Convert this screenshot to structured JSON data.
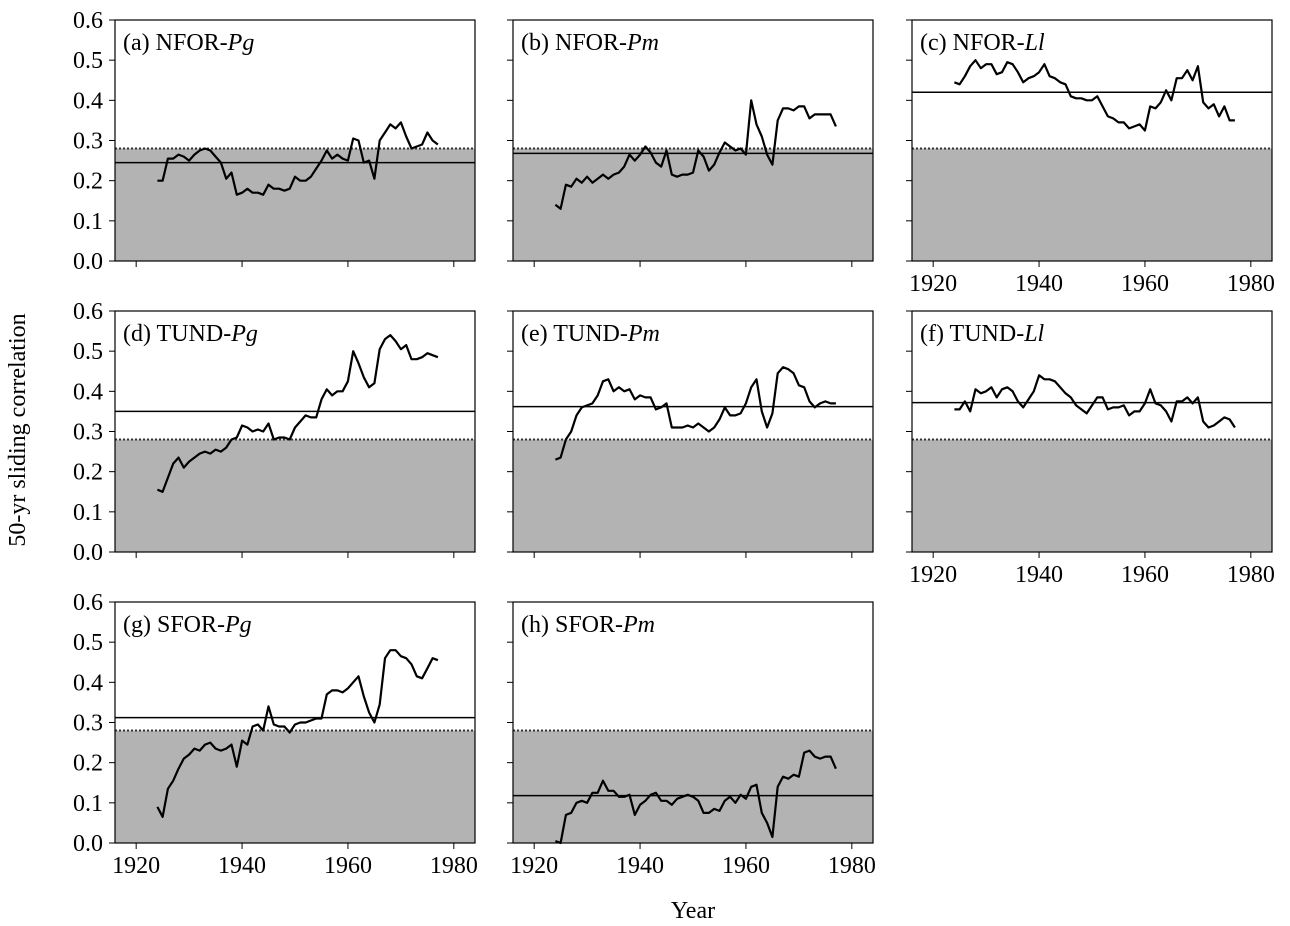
{
  "y_label": "50-yr sliding correlation",
  "x_label": "Year",
  "chart_data": [
    {
      "type": "line",
      "title": "(a) NFOR-Pg",
      "mean": 0.245,
      "threshold": 0.28,
      "xlim": [
        1916,
        1984
      ],
      "ylim": [
        0,
        0.6
      ],
      "xticks": [
        1920,
        1940,
        1960,
        1980
      ],
      "yticks": [
        {
          "value": 0,
          "label": "0.0"
        },
        0.1,
        0.2,
        0.3,
        0.4,
        0.5,
        0.6
      ],
      "xtick_labels": false,
      "ytick_labels": true,
      "x": [
        1924,
        1925,
        1926,
        1927,
        1928,
        1929,
        1930,
        1931,
        1932,
        1933,
        1934,
        1935,
        1936,
        1937,
        1938,
        1939,
        1940,
        1941,
        1942,
        1943,
        1944,
        1945,
        1946,
        1947,
        1948,
        1949,
        1950,
        1951,
        1952,
        1953,
        1954,
        1955,
        1956,
        1957,
        1958,
        1959,
        1960,
        1961,
        1962,
        1963,
        1964,
        1965,
        1966,
        1967,
        1968,
        1969,
        1970,
        1971,
        1972,
        1973,
        1974,
        1975,
        1976,
        1977
      ],
      "values": [
        0.2,
        0.2,
        0.255,
        0.255,
        0.265,
        0.26,
        0.25,
        0.265,
        0.275,
        0.28,
        0.275,
        0.26,
        0.245,
        0.205,
        0.22,
        0.165,
        0.17,
        0.18,
        0.17,
        0.17,
        0.165,
        0.19,
        0.18,
        0.18,
        0.175,
        0.18,
        0.21,
        0.2,
        0.2,
        0.21,
        0.23,
        0.25,
        0.275,
        0.255,
        0.265,
        0.255,
        0.25,
        0.305,
        0.3,
        0.245,
        0.25,
        0.205,
        0.3,
        0.32,
        0.34,
        0.33,
        0.345,
        0.31,
        0.28,
        0.285,
        0.29,
        0.32,
        0.3,
        0.29
      ]
    },
    {
      "type": "line",
      "title": "(b) NFOR-Pm",
      "mean": 0.268,
      "threshold": 0.28,
      "xlim": [
        1916,
        1984
      ],
      "ylim": [
        0,
        0.6
      ],
      "xticks": [
        1920,
        1940,
        1960,
        1980
      ],
      "yticks": [
        {
          "value": 0,
          "label": "0.0"
        },
        0.1,
        0.2,
        0.3,
        0.4,
        0.5,
        0.6
      ],
      "xtick_labels": false,
      "ytick_labels": false,
      "x": [
        1924,
        1925,
        1926,
        1927,
        1928,
        1929,
        1930,
        1931,
        1932,
        1933,
        1934,
        1935,
        1936,
        1937,
        1938,
        1939,
        1940,
        1941,
        1942,
        1943,
        1944,
        1945,
        1946,
        1947,
        1948,
        1949,
        1950,
        1951,
        1952,
        1953,
        1954,
        1955,
        1956,
        1957,
        1958,
        1959,
        1960,
        1961,
        1962,
        1963,
        1964,
        1965,
        1966,
        1967,
        1968,
        1969,
        1970,
        1971,
        1972,
        1973,
        1974,
        1975,
        1976,
        1977
      ],
      "values": [
        0.14,
        0.13,
        0.19,
        0.185,
        0.205,
        0.195,
        0.21,
        0.195,
        0.205,
        0.215,
        0.205,
        0.215,
        0.22,
        0.235,
        0.265,
        0.25,
        0.265,
        0.285,
        0.27,
        0.245,
        0.235,
        0.275,
        0.215,
        0.21,
        0.215,
        0.215,
        0.22,
        0.275,
        0.26,
        0.225,
        0.24,
        0.27,
        0.295,
        0.285,
        0.275,
        0.28,
        0.265,
        0.4,
        0.34,
        0.31,
        0.265,
        0.24,
        0.35,
        0.38,
        0.38,
        0.375,
        0.385,
        0.385,
        0.355,
        0.365,
        0.365,
        0.365,
        0.365,
        0.335
      ]
    },
    {
      "type": "line",
      "title": "(c) NFOR-Ll",
      "mean": 0.42,
      "threshold": 0.28,
      "xlim": [
        1916,
        1984
      ],
      "ylim": [
        0,
        0.6
      ],
      "xticks": [
        1920,
        1940,
        1960,
        1980
      ],
      "yticks": [
        {
          "value": 0,
          "label": "0.0"
        },
        0.1,
        0.2,
        0.3,
        0.4,
        0.5,
        0.6
      ],
      "xtick_labels": true,
      "ytick_labels": false,
      "x": [
        1924,
        1925,
        1926,
        1927,
        1928,
        1929,
        1930,
        1931,
        1932,
        1933,
        1934,
        1935,
        1936,
        1937,
        1938,
        1939,
        1940,
        1941,
        1942,
        1943,
        1944,
        1945,
        1946,
        1947,
        1948,
        1949,
        1950,
        1951,
        1952,
        1953,
        1954,
        1955,
        1956,
        1957,
        1958,
        1959,
        1960,
        1961,
        1962,
        1963,
        1964,
        1965,
        1966,
        1967,
        1968,
        1969,
        1970,
        1971,
        1972,
        1973,
        1974,
        1975,
        1976,
        1977
      ],
      "values": [
        0.445,
        0.44,
        0.46,
        0.485,
        0.5,
        0.48,
        0.49,
        0.49,
        0.465,
        0.47,
        0.495,
        0.49,
        0.47,
        0.445,
        0.455,
        0.46,
        0.47,
        0.49,
        0.46,
        0.455,
        0.445,
        0.44,
        0.41,
        0.405,
        0.405,
        0.4,
        0.4,
        0.41,
        0.385,
        0.36,
        0.355,
        0.345,
        0.345,
        0.33,
        0.335,
        0.34,
        0.325,
        0.385,
        0.38,
        0.395,
        0.425,
        0.4,
        0.455,
        0.455,
        0.475,
        0.45,
        0.485,
        0.395,
        0.38,
        0.39,
        0.36,
        0.385,
        0.35,
        0.35
      ]
    },
    {
      "type": "line",
      "title": "(d) TUND-Pg",
      "mean": 0.35,
      "threshold": 0.28,
      "xlim": [
        1916,
        1984
      ],
      "ylim": [
        0,
        0.6
      ],
      "xticks": [
        1920,
        1940,
        1960,
        1980
      ],
      "yticks": [
        {
          "value": 0,
          "label": "0.0"
        },
        0.1,
        0.2,
        0.3,
        0.4,
        0.5,
        0.6
      ],
      "xtick_labels": false,
      "ytick_labels": true,
      "x": [
        1924,
        1925,
        1926,
        1927,
        1928,
        1929,
        1930,
        1931,
        1932,
        1933,
        1934,
        1935,
        1936,
        1937,
        1938,
        1939,
        1940,
        1941,
        1942,
        1943,
        1944,
        1945,
        1946,
        1947,
        1948,
        1949,
        1950,
        1951,
        1952,
        1953,
        1954,
        1955,
        1956,
        1957,
        1958,
        1959,
        1960,
        1961,
        1962,
        1963,
        1964,
        1965,
        1966,
        1967,
        1968,
        1969,
        1970,
        1971,
        1972,
        1973,
        1974,
        1975,
        1976,
        1977
      ],
      "values": [
        0.155,
        0.15,
        0.185,
        0.22,
        0.235,
        0.21,
        0.225,
        0.235,
        0.245,
        0.25,
        0.245,
        0.255,
        0.25,
        0.26,
        0.28,
        0.285,
        0.315,
        0.31,
        0.3,
        0.305,
        0.3,
        0.32,
        0.28,
        0.285,
        0.285,
        0.28,
        0.31,
        0.325,
        0.34,
        0.335,
        0.335,
        0.38,
        0.405,
        0.39,
        0.4,
        0.4,
        0.425,
        0.5,
        0.47,
        0.435,
        0.41,
        0.42,
        0.505,
        0.53,
        0.54,
        0.525,
        0.505,
        0.515,
        0.48,
        0.48,
        0.485,
        0.495,
        0.49,
        0.485
      ]
    },
    {
      "type": "line",
      "title": "(e) TUND-Pm",
      "mean": 0.362,
      "threshold": 0.28,
      "xlim": [
        1916,
        1984
      ],
      "ylim": [
        0,
        0.6
      ],
      "xticks": [
        1920,
        1940,
        1960,
        1980
      ],
      "yticks": [
        {
          "value": 0,
          "label": "0.0"
        },
        0.1,
        0.2,
        0.3,
        0.4,
        0.5,
        0.6
      ],
      "xtick_labels": false,
      "ytick_labels": false,
      "x": [
        1924,
        1925,
        1926,
        1927,
        1928,
        1929,
        1930,
        1931,
        1932,
        1933,
        1934,
        1935,
        1936,
        1937,
        1938,
        1939,
        1940,
        1941,
        1942,
        1943,
        1944,
        1945,
        1946,
        1947,
        1948,
        1949,
        1950,
        1951,
        1952,
        1953,
        1954,
        1955,
        1956,
        1957,
        1958,
        1959,
        1960,
        1961,
        1962,
        1963,
        1964,
        1965,
        1966,
        1967,
        1968,
        1969,
        1970,
        1971,
        1972,
        1973,
        1974,
        1975,
        1976,
        1977
      ],
      "values": [
        0.23,
        0.235,
        0.28,
        0.3,
        0.34,
        0.36,
        0.365,
        0.37,
        0.39,
        0.425,
        0.43,
        0.4,
        0.41,
        0.4,
        0.405,
        0.38,
        0.39,
        0.385,
        0.385,
        0.355,
        0.36,
        0.37,
        0.31,
        0.31,
        0.31,
        0.315,
        0.31,
        0.32,
        0.31,
        0.3,
        0.31,
        0.33,
        0.36,
        0.34,
        0.34,
        0.345,
        0.37,
        0.41,
        0.43,
        0.35,
        0.31,
        0.345,
        0.445,
        0.46,
        0.455,
        0.445,
        0.415,
        0.41,
        0.375,
        0.36,
        0.37,
        0.375,
        0.37,
        0.37
      ]
    },
    {
      "type": "line",
      "title": "(f) TUND-Ll",
      "mean": 0.372,
      "threshold": 0.28,
      "xlim": [
        1916,
        1984
      ],
      "ylim": [
        0,
        0.6
      ],
      "xticks": [
        1920,
        1940,
        1960,
        1980
      ],
      "yticks": [
        {
          "value": 0,
          "label": "0.0"
        },
        0.1,
        0.2,
        0.3,
        0.4,
        0.5,
        0.6
      ],
      "xtick_labels": true,
      "ytick_labels": false,
      "x": [
        1924,
        1925,
        1926,
        1927,
        1928,
        1929,
        1930,
        1931,
        1932,
        1933,
        1934,
        1935,
        1936,
        1937,
        1938,
        1939,
        1940,
        1941,
        1942,
        1943,
        1944,
        1945,
        1946,
        1947,
        1948,
        1949,
        1950,
        1951,
        1952,
        1953,
        1954,
        1955,
        1956,
        1957,
        1958,
        1959,
        1960,
        1961,
        1962,
        1963,
        1964,
        1965,
        1966,
        1967,
        1968,
        1969,
        1970,
        1971,
        1972,
        1973,
        1974,
        1975,
        1976,
        1977
      ],
      "values": [
        0.355,
        0.355,
        0.375,
        0.35,
        0.405,
        0.395,
        0.4,
        0.41,
        0.385,
        0.405,
        0.41,
        0.4,
        0.375,
        0.36,
        0.38,
        0.4,
        0.44,
        0.43,
        0.43,
        0.425,
        0.41,
        0.395,
        0.385,
        0.365,
        0.355,
        0.345,
        0.365,
        0.385,
        0.385,
        0.355,
        0.36,
        0.36,
        0.365,
        0.34,
        0.35,
        0.35,
        0.37,
        0.405,
        0.37,
        0.365,
        0.35,
        0.325,
        0.375,
        0.375,
        0.385,
        0.37,
        0.385,
        0.325,
        0.31,
        0.315,
        0.325,
        0.335,
        0.33,
        0.31
      ]
    },
    {
      "type": "line",
      "title": "(g) SFOR-Pg",
      "mean": 0.312,
      "threshold": 0.28,
      "xlim": [
        1916,
        1984
      ],
      "ylim": [
        0,
        0.6
      ],
      "xticks": [
        1920,
        1940,
        1960,
        1980
      ],
      "yticks": [
        {
          "value": 0,
          "label": "0.0"
        },
        0.1,
        0.2,
        0.3,
        0.4,
        0.5,
        0.6
      ],
      "xtick_labels": true,
      "ytick_labels": true,
      "x": [
        1924,
        1925,
        1926,
        1927,
        1928,
        1929,
        1930,
        1931,
        1932,
        1933,
        1934,
        1935,
        1936,
        1937,
        1938,
        1939,
        1940,
        1941,
        1942,
        1943,
        1944,
        1945,
        1946,
        1947,
        1948,
        1949,
        1950,
        1951,
        1952,
        1953,
        1954,
        1955,
        1956,
        1957,
        1958,
        1959,
        1960,
        1961,
        1962,
        1963,
        1964,
        1965,
        1966,
        1967,
        1968,
        1969,
        1970,
        1971,
        1972,
        1973,
        1974,
        1975,
        1976,
        1977
      ],
      "values": [
        0.09,
        0.065,
        0.135,
        0.155,
        0.185,
        0.21,
        0.22,
        0.235,
        0.23,
        0.245,
        0.25,
        0.235,
        0.23,
        0.235,
        0.245,
        0.19,
        0.255,
        0.245,
        0.29,
        0.295,
        0.28,
        0.34,
        0.295,
        0.29,
        0.29,
        0.275,
        0.295,
        0.3,
        0.3,
        0.305,
        0.31,
        0.31,
        0.37,
        0.38,
        0.38,
        0.375,
        0.385,
        0.4,
        0.415,
        0.365,
        0.325,
        0.3,
        0.345,
        0.46,
        0.48,
        0.48,
        0.465,
        0.46,
        0.445,
        0.415,
        0.41,
        0.435,
        0.46,
        0.455
      ]
    },
    {
      "type": "line",
      "title": "(h) SFOR-Pm",
      "mean": 0.118,
      "threshold": 0.28,
      "xlim": [
        1916,
        1984
      ],
      "ylim": [
        0,
        0.6
      ],
      "xticks": [
        1920,
        1940,
        1960,
        1980
      ],
      "yticks": [
        {
          "value": 0,
          "label": "0.0"
        },
        0.1,
        0.2,
        0.3,
        0.4,
        0.5,
        0.6
      ],
      "xtick_labels": true,
      "ytick_labels": false,
      "x": [
        1924,
        1925,
        1926,
        1927,
        1928,
        1929,
        1930,
        1931,
        1932,
        1933,
        1934,
        1935,
        1936,
        1937,
        1938,
        1939,
        1940,
        1941,
        1942,
        1943,
        1944,
        1945,
        1946,
        1947,
        1948,
        1949,
        1950,
        1951,
        1952,
        1953,
        1954,
        1955,
        1956,
        1957,
        1958,
        1959,
        1960,
        1961,
        1962,
        1963,
        1964,
        1965,
        1966,
        1967,
        1968,
        1969,
        1970,
        1971,
        1972,
        1973,
        1974,
        1975,
        1976,
        1977
      ],
      "values": [
        0.005,
        0.0,
        0.07,
        0.075,
        0.1,
        0.105,
        0.1,
        0.125,
        0.125,
        0.155,
        0.13,
        0.13,
        0.115,
        0.115,
        0.12,
        0.07,
        0.095,
        0.105,
        0.12,
        0.125,
        0.105,
        0.105,
        0.095,
        0.11,
        0.115,
        0.12,
        0.115,
        0.105,
        0.075,
        0.075,
        0.085,
        0.08,
        0.105,
        0.115,
        0.1,
        0.12,
        0.11,
        0.14,
        0.145,
        0.075,
        0.05,
        0.015,
        0.14,
        0.165,
        0.16,
        0.17,
        0.165,
        0.225,
        0.23,
        0.215,
        0.21,
        0.215,
        0.215,
        0.185
      ]
    }
  ]
}
